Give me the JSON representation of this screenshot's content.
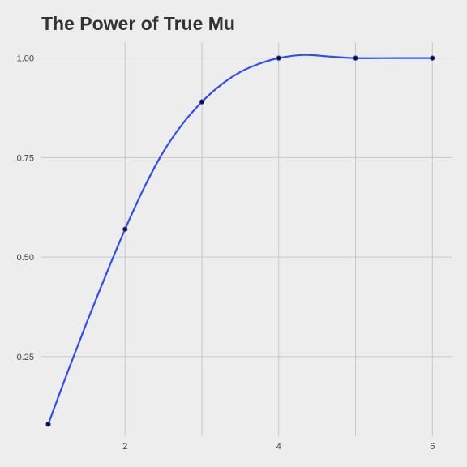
{
  "chart_data": {
    "type": "line",
    "title": "The Power of True Mu",
    "xlabel": "",
    "ylabel": "",
    "x": [
      1,
      2,
      3,
      4,
      5,
      6
    ],
    "series": [
      {
        "values": [
          0.08,
          0.57,
          0.89,
          1.0,
          1.0,
          1.0
        ]
      }
    ],
    "smooth_curve": [
      [
        1.0,
        0.08
      ],
      [
        1.25,
        0.21
      ],
      [
        1.5,
        0.335
      ],
      [
        1.75,
        0.455
      ],
      [
        2.0,
        0.57
      ],
      [
        2.25,
        0.675
      ],
      [
        2.5,
        0.765
      ],
      [
        2.75,
        0.835
      ],
      [
        3.0,
        0.89
      ],
      [
        3.25,
        0.933
      ],
      [
        3.5,
        0.965
      ],
      [
        3.75,
        0.986
      ],
      [
        4.0,
        1.0
      ],
      [
        4.33,
        1.008
      ],
      [
        4.66,
        1.004
      ],
      [
        5.0,
        1.0
      ],
      [
        5.5,
        1.0
      ],
      [
        6.0,
        1.0
      ]
    ],
    "xlim": [
      0.9,
      6.25
    ],
    "ylim": [
      0.05,
      1.04
    ],
    "x_ticks": [
      {
        "value": 2,
        "label": "2"
      },
      {
        "value": 4,
        "label": "4"
      },
      {
        "value": 6,
        "label": "6"
      }
    ],
    "x_minor_grid": [
      3,
      5
    ],
    "y_ticks": [
      {
        "value": 0.25,
        "label": "0.25"
      },
      {
        "value": 0.5,
        "label": "0.50"
      },
      {
        "value": 0.75,
        "label": "0.75"
      },
      {
        "value": 1.0,
        "label": "1.00"
      }
    ],
    "grid": true,
    "legend": "none",
    "colors": {
      "background": "#ededed",
      "grid": "#c8c8c8",
      "line": "#2f4ef0",
      "points": "#111111",
      "title": "#333333"
    }
  }
}
